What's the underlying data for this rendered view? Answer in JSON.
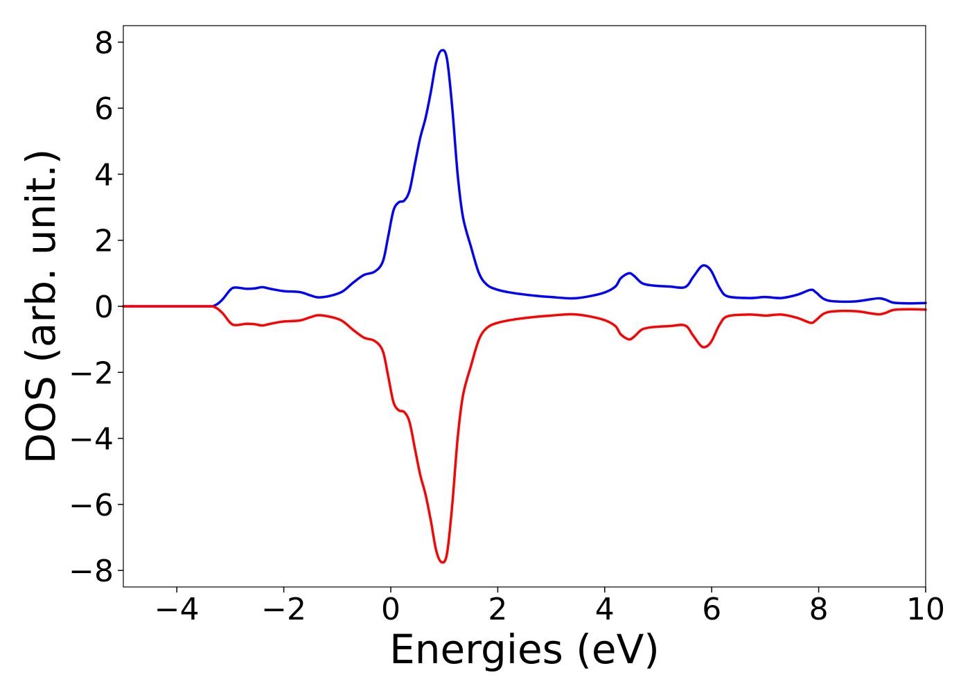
{
  "chart_data": {
    "type": "line",
    "title": "",
    "xlabel": "Energies (eV)",
    "ylabel": "DOS (arb. unit.)",
    "xlim": [
      -5,
      10
    ],
    "ylim": [
      -8.5,
      8.5
    ],
    "grid": false,
    "legend": "none",
    "x_ticks": [
      -4,
      -2,
      0,
      2,
      4,
      6,
      8,
      10
    ],
    "x_tick_labels": [
      "−4",
      "−2",
      "0",
      "2",
      "4",
      "6",
      "8",
      "10"
    ],
    "y_ticks": [
      -8,
      -6,
      -4,
      -2,
      0,
      2,
      4,
      6,
      8
    ],
    "y_tick_labels": [
      "−8",
      "−6",
      "−4",
      "−2",
      "0",
      "2",
      "4",
      "6",
      "8"
    ],
    "series": [
      {
        "color": "#0000ff",
        "points": [
          [
            -5.0,
            0.0
          ],
          [
            -3.5,
            0.0
          ],
          [
            -3.3,
            0.02
          ],
          [
            -3.15,
            0.2
          ],
          [
            -3.0,
            0.5
          ],
          [
            -2.9,
            0.57
          ],
          [
            -2.7,
            0.53
          ],
          [
            -2.55,
            0.54
          ],
          [
            -2.4,
            0.58
          ],
          [
            -2.25,
            0.53
          ],
          [
            -2.0,
            0.46
          ],
          [
            -1.7,
            0.43
          ],
          [
            -1.5,
            0.33
          ],
          [
            -1.35,
            0.27
          ],
          [
            -1.1,
            0.33
          ],
          [
            -0.9,
            0.45
          ],
          [
            -0.7,
            0.72
          ],
          [
            -0.5,
            0.95
          ],
          [
            -0.3,
            1.05
          ],
          [
            -0.15,
            1.35
          ],
          [
            -0.05,
            2.1
          ],
          [
            0.05,
            2.9
          ],
          [
            0.15,
            3.15
          ],
          [
            0.25,
            3.2
          ],
          [
            0.35,
            3.5
          ],
          [
            0.45,
            4.3
          ],
          [
            0.55,
            5.1
          ],
          [
            0.65,
            5.7
          ],
          [
            0.75,
            6.5
          ],
          [
            0.85,
            7.4
          ],
          [
            0.95,
            7.75
          ],
          [
            1.05,
            7.5
          ],
          [
            1.15,
            6.0
          ],
          [
            1.25,
            4.0
          ],
          [
            1.35,
            2.7
          ],
          [
            1.5,
            1.8
          ],
          [
            1.65,
            1.0
          ],
          [
            1.8,
            0.65
          ],
          [
            2.0,
            0.5
          ],
          [
            2.3,
            0.4
          ],
          [
            2.7,
            0.32
          ],
          [
            3.0,
            0.28
          ],
          [
            3.4,
            0.24
          ],
          [
            3.7,
            0.3
          ],
          [
            4.0,
            0.42
          ],
          [
            4.2,
            0.6
          ],
          [
            4.3,
            0.85
          ],
          [
            4.45,
            1.0
          ],
          [
            4.55,
            0.92
          ],
          [
            4.7,
            0.7
          ],
          [
            4.9,
            0.63
          ],
          [
            5.2,
            0.6
          ],
          [
            5.5,
            0.58
          ],
          [
            5.65,
            0.88
          ],
          [
            5.8,
            1.2
          ],
          [
            5.9,
            1.22
          ],
          [
            6.0,
            1.05
          ],
          [
            6.15,
            0.55
          ],
          [
            6.3,
            0.3
          ],
          [
            6.7,
            0.25
          ],
          [
            7.0,
            0.28
          ],
          [
            7.3,
            0.25
          ],
          [
            7.6,
            0.35
          ],
          [
            7.85,
            0.5
          ],
          [
            7.95,
            0.42
          ],
          [
            8.1,
            0.22
          ],
          [
            8.3,
            0.15
          ],
          [
            8.7,
            0.15
          ],
          [
            9.1,
            0.24
          ],
          [
            9.25,
            0.2
          ],
          [
            9.4,
            0.11
          ],
          [
            9.7,
            0.09
          ],
          [
            10.0,
            0.1
          ]
        ]
      },
      {
        "color": "#ff0000",
        "points": [
          [
            -5.0,
            0.0
          ],
          [
            -3.5,
            0.0
          ],
          [
            -3.3,
            -0.02
          ],
          [
            -3.15,
            -0.2
          ],
          [
            -3.0,
            -0.5
          ],
          [
            -2.9,
            -0.57
          ],
          [
            -2.7,
            -0.53
          ],
          [
            -2.55,
            -0.54
          ],
          [
            -2.4,
            -0.58
          ],
          [
            -2.25,
            -0.53
          ],
          [
            -2.0,
            -0.46
          ],
          [
            -1.7,
            -0.43
          ],
          [
            -1.5,
            -0.33
          ],
          [
            -1.35,
            -0.27
          ],
          [
            -1.1,
            -0.33
          ],
          [
            -0.9,
            -0.45
          ],
          [
            -0.7,
            -0.72
          ],
          [
            -0.5,
            -0.95
          ],
          [
            -0.3,
            -1.05
          ],
          [
            -0.15,
            -1.35
          ],
          [
            -0.05,
            -2.1
          ],
          [
            0.05,
            -2.9
          ],
          [
            0.15,
            -3.15
          ],
          [
            0.25,
            -3.2
          ],
          [
            0.35,
            -3.5
          ],
          [
            0.45,
            -4.3
          ],
          [
            0.55,
            -5.1
          ],
          [
            0.65,
            -5.7
          ],
          [
            0.75,
            -6.5
          ],
          [
            0.85,
            -7.4
          ],
          [
            0.95,
            -7.75
          ],
          [
            1.05,
            -7.5
          ],
          [
            1.15,
            -6.0
          ],
          [
            1.25,
            -4.0
          ],
          [
            1.35,
            -2.7
          ],
          [
            1.5,
            -1.8
          ],
          [
            1.65,
            -1.0
          ],
          [
            1.8,
            -0.65
          ],
          [
            2.0,
            -0.5
          ],
          [
            2.3,
            -0.4
          ],
          [
            2.7,
            -0.32
          ],
          [
            3.0,
            -0.28
          ],
          [
            3.4,
            -0.24
          ],
          [
            3.7,
            -0.3
          ],
          [
            4.0,
            -0.42
          ],
          [
            4.2,
            -0.6
          ],
          [
            4.3,
            -0.85
          ],
          [
            4.45,
            -1.0
          ],
          [
            4.55,
            -0.92
          ],
          [
            4.7,
            -0.7
          ],
          [
            4.9,
            -0.63
          ],
          [
            5.2,
            -0.6
          ],
          [
            5.5,
            -0.58
          ],
          [
            5.65,
            -0.88
          ],
          [
            5.8,
            -1.2
          ],
          [
            5.9,
            -1.22
          ],
          [
            6.0,
            -1.05
          ],
          [
            6.15,
            -0.55
          ],
          [
            6.3,
            -0.3
          ],
          [
            6.7,
            -0.25
          ],
          [
            7.0,
            -0.28
          ],
          [
            7.3,
            -0.25
          ],
          [
            7.6,
            -0.35
          ],
          [
            7.85,
            -0.5
          ],
          [
            7.95,
            -0.42
          ],
          [
            8.1,
            -0.22
          ],
          [
            8.3,
            -0.15
          ],
          [
            8.7,
            -0.15
          ],
          [
            9.1,
            -0.24
          ],
          [
            9.25,
            -0.2
          ],
          [
            9.4,
            -0.11
          ],
          [
            9.7,
            -0.09
          ],
          [
            10.0,
            -0.1
          ]
        ]
      }
    ]
  }
}
